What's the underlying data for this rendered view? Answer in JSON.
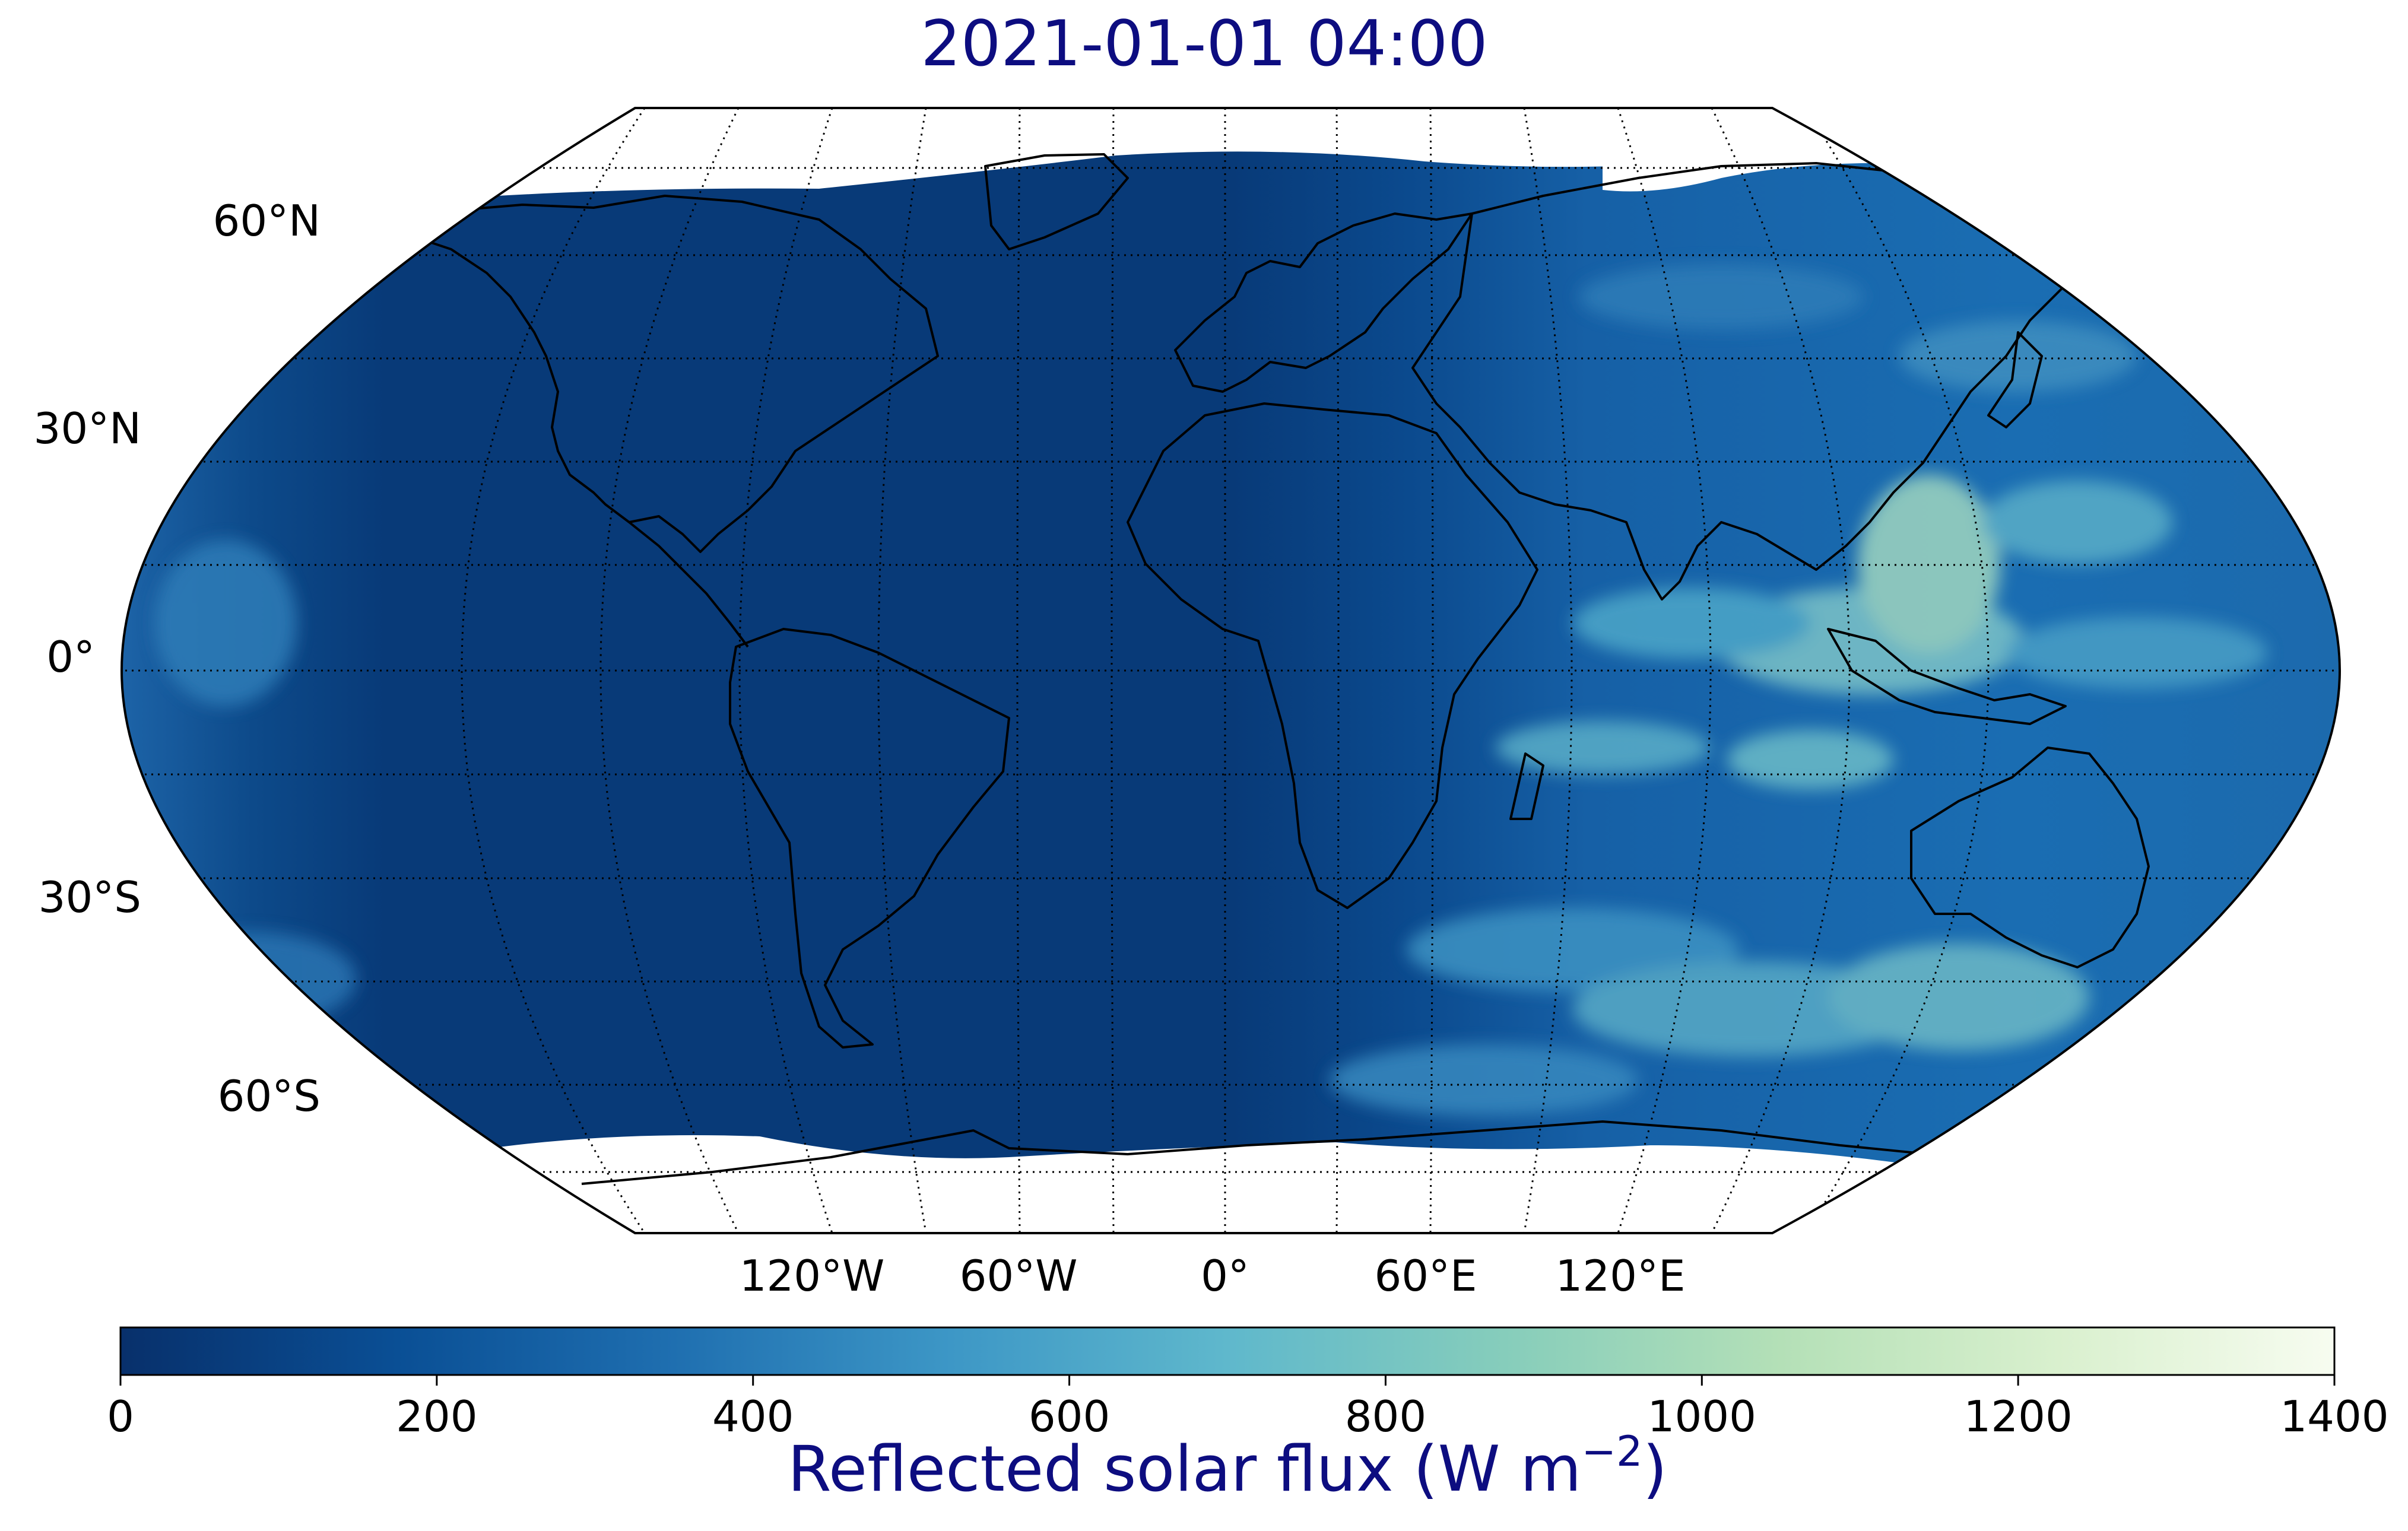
{
  "title": "2021-01-01 04:00",
  "map": {
    "projection": "Robinson",
    "variable": "Reflected solar flux",
    "daylight_side": "east (Asia, Indian Ocean, Australia, western Pacific)",
    "night_side": "west (Americas, Atlantic, Africa west)",
    "colormap": [
      "#08306b",
      "#0a4f95",
      "#1f6fb0",
      "#3d97c6",
      "#5fb8cc",
      "#86cdbb",
      "#b4e0b7",
      "#d9f0ce",
      "#f7fcf0"
    ]
  },
  "lat_labels": [
    "60°N",
    "30°N",
    "0°",
    "30°S",
    "60°S"
  ],
  "lon_labels": [
    "120°W",
    "60°W",
    "0°",
    "60°E",
    "120°E"
  ],
  "colorbar": {
    "ticks": [
      "0",
      "200",
      "400",
      "600",
      "800",
      "1000",
      "1200",
      "1400"
    ],
    "range": [
      0,
      1400
    ],
    "label_text": "Reflected solar flux (W m",
    "label_sup": "−2",
    "label_close": ")"
  }
}
